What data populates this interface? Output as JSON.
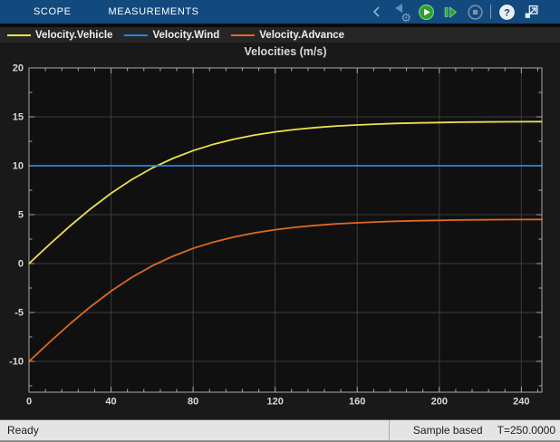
{
  "toolstrip": {
    "tabs": [
      {
        "label": "SCOPE"
      },
      {
        "label": "MEASUREMENTS"
      }
    ],
    "toolbar_icons": [
      "collapse-chevron-left",
      "step-back-settings-gear",
      "run",
      "step-forward",
      "stop",
      "help",
      "undock"
    ],
    "icon_states": {
      "step_back": "disabled",
      "run": "enabled",
      "step_forward": "enabled",
      "stop": "disabled"
    }
  },
  "colors": {
    "toolstrip_bg": "#134a7e",
    "run_green": "#2aa12a",
    "legend_bg": "#262626",
    "figure_bg": "#191919",
    "plot_bg": "#101010",
    "grid": "#3d3d3d",
    "axis": "#a9a9a9",
    "status_bg": "#e4e4e4"
  },
  "chart_data": {
    "type": "line",
    "title": "Velocities (m/s)",
    "xlabel": "",
    "ylabel": "",
    "xlim": [
      0,
      250
    ],
    "ylim": [
      -13.15,
      20
    ],
    "xticks": [
      0,
      40,
      80,
      120,
      160,
      200,
      240
    ],
    "yticks": [
      -10,
      -5,
      0,
      5,
      10,
      15,
      20
    ],
    "x_minor_step": 8,
    "y_minor_step": 2.5,
    "grid": true,
    "legend_position": "top-left-horizontal",
    "x": [
      0,
      10,
      20,
      30,
      40,
      50,
      60,
      70,
      80,
      90,
      100,
      110,
      120,
      130,
      140,
      150,
      160,
      170,
      180,
      190,
      200,
      210,
      220,
      230,
      240,
      250
    ],
    "series": [
      {
        "name": "Velocity.Vehicle",
        "color": "#efe04e",
        "values": [
          0,
          1.95,
          3.84,
          5.59,
          7.18,
          8.57,
          9.76,
          10.74,
          11.55,
          12.2,
          12.72,
          13.14,
          13.46,
          13.71,
          13.91,
          14.06,
          14.17,
          14.26,
          14.33,
          14.38,
          14.42,
          14.45,
          14.47,
          14.49,
          14.5,
          14.51
        ]
      },
      {
        "name": "Velocity.Wind",
        "color": "#2787dc",
        "values": [
          10,
          10,
          10,
          10,
          10,
          10,
          10,
          10,
          10,
          10,
          10,
          10,
          10,
          10,
          10,
          10,
          10,
          10,
          10,
          10,
          10,
          10,
          10,
          10,
          10,
          10
        ]
      },
      {
        "name": "Velocity.Advance",
        "color": "#de6a1e",
        "values": [
          -10,
          -8.05,
          -6.16,
          -4.41,
          -2.82,
          -1.43,
          -0.24,
          0.74,
          1.55,
          2.2,
          2.72,
          3.14,
          3.46,
          3.71,
          3.91,
          4.06,
          4.17,
          4.26,
          4.33,
          4.38,
          4.42,
          4.45,
          4.47,
          4.49,
          4.5,
          4.51
        ]
      }
    ]
  },
  "status_bar": {
    "state": "Ready",
    "sample_mode": "Sample based",
    "sim_time": "T=250.0000"
  }
}
